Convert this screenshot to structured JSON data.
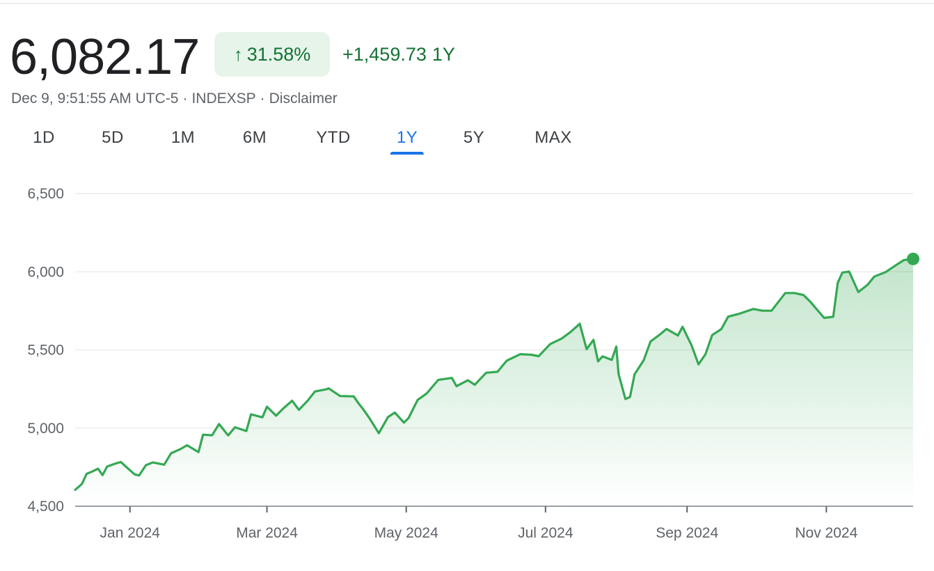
{
  "header": {
    "price": "6,082.17",
    "change_percent": "31.58%",
    "change_arrow_icon": "arrow-up-icon",
    "change_value": "+1,459.73",
    "change_period": "1Y",
    "timestamp": "Dec 9, 9:51:55 AM UTC-5",
    "separator": "·",
    "exchange": "INDEXSP",
    "disclaimer": "Disclaimer"
  },
  "tabs": [
    {
      "label": "1D",
      "active": false
    },
    {
      "label": "5D",
      "active": false
    },
    {
      "label": "1M",
      "active": false
    },
    {
      "label": "6M",
      "active": false
    },
    {
      "label": "YTD",
      "active": false
    },
    {
      "label": "1Y",
      "active": true
    },
    {
      "label": "5Y",
      "active": false
    },
    {
      "label": "MAX",
      "active": false
    }
  ],
  "colors": {
    "line": "#34a853",
    "positive_text": "#137333",
    "badge_bg": "#e6f4ea",
    "active_tab": "#1a73e8"
  },
  "chart_data": {
    "type": "area",
    "title": "",
    "xlabel": "",
    "ylabel": "",
    "ylim": [
      4500,
      6500
    ],
    "yticks": [
      4500,
      5000,
      5500,
      6000,
      6500
    ],
    "ytick_labels": [
      "4,500",
      "5,000",
      "5,500",
      "6,000",
      "6,500"
    ],
    "xlim": [
      "2023-12-08",
      "2024-12-09"
    ],
    "xticks": [
      "2024-01-01",
      "2024-03-01",
      "2024-05-01",
      "2024-07-01",
      "2024-09-01",
      "2024-11-01"
    ],
    "xtick_labels": [
      "Jan 2024",
      "Mar 2024",
      "May 2024",
      "Jul 2024",
      "Sep 2024",
      "Nov 2024"
    ],
    "grid": true,
    "last_point_marker": true,
    "series": [
      {
        "x": [
          "2023-12-08",
          "2023-12-11",
          "2023-12-13",
          "2023-12-15",
          "2023-12-18",
          "2023-12-20",
          "2023-12-22",
          "2023-12-26",
          "2023-12-28",
          "2024-01-03",
          "2024-01-05",
          "2024-01-08",
          "2024-01-11",
          "2024-01-16",
          "2024-01-19",
          "2024-01-23",
          "2024-01-26",
          "2024-01-31",
          "2024-02-02",
          "2024-02-06",
          "2024-02-09",
          "2024-02-13",
          "2024-02-16",
          "2024-02-21",
          "2024-02-23",
          "2024-02-28",
          "2024-03-01",
          "2024-03-05",
          "2024-03-08",
          "2024-03-12",
          "2024-03-15",
          "2024-03-19",
          "2024-03-22",
          "2024-03-27",
          "2024-03-28",
          "2024-04-02",
          "2024-04-05",
          "2024-04-08",
          "2024-04-10",
          "2024-04-12",
          "2024-04-15",
          "2024-04-19",
          "2024-04-23",
          "2024-04-26",
          "2024-04-30",
          "2024-05-02",
          "2024-05-06",
          "2024-05-10",
          "2024-05-15",
          "2024-05-21",
          "2024-05-23",
          "2024-05-28",
          "2024-05-31",
          "2024-06-05",
          "2024-06-10",
          "2024-06-14",
          "2024-06-20",
          "2024-06-25",
          "2024-06-28",
          "2024-07-03",
          "2024-07-08",
          "2024-07-12",
          "2024-07-16",
          "2024-07-19",
          "2024-07-22",
          "2024-07-24",
          "2024-07-26",
          "2024-07-30",
          "2024-08-01",
          "2024-08-02",
          "2024-08-05",
          "2024-08-07",
          "2024-08-09",
          "2024-08-13",
          "2024-08-16",
          "2024-08-20",
          "2024-08-23",
          "2024-08-28",
          "2024-08-30",
          "2024-09-03",
          "2024-09-06",
          "2024-09-09",
          "2024-09-12",
          "2024-09-16",
          "2024-09-19",
          "2024-09-24",
          "2024-09-30",
          "2024-10-04",
          "2024-10-08",
          "2024-10-14",
          "2024-10-18",
          "2024-10-22",
          "2024-10-25",
          "2024-10-31",
          "2024-11-04",
          "2024-11-06",
          "2024-11-08",
          "2024-11-11",
          "2024-11-15",
          "2024-11-19",
          "2024-11-22",
          "2024-11-27",
          "2024-12-02",
          "2024-12-05",
          "2024-12-09"
        ],
        "y": [
          4605,
          4643,
          4707,
          4719,
          4740,
          4699,
          4754,
          4775,
          4783,
          4704,
          4697,
          4763,
          4780,
          4766,
          4839,
          4865,
          4890,
          4846,
          4958,
          4954,
          5026,
          4953,
          5005,
          4981,
          5088,
          5069,
          5137,
          5079,
          5123,
          5175,
          5117,
          5178,
          5234,
          5248,
          5254,
          5205,
          5204,
          5203,
          5160,
          5123,
          5061,
          4967,
          5070,
          5099,
          5035,
          5064,
          5180,
          5222,
          5308,
          5321,
          5268,
          5306,
          5277,
          5354,
          5360,
          5431,
          5473,
          5469,
          5460,
          5537,
          5572,
          5615,
          5667,
          5505,
          5564,
          5427,
          5459,
          5436,
          5522,
          5346,
          5186,
          5199,
          5344,
          5434,
          5554,
          5597,
          5634,
          5592,
          5648,
          5528,
          5408,
          5471,
          5595,
          5633,
          5713,
          5732,
          5762,
          5751,
          5751,
          5864,
          5864,
          5851,
          5808,
          5705,
          5712,
          5929,
          5995,
          6001,
          5870,
          5916,
          5969,
          5998,
          6047,
          6075,
          6082
        ]
      }
    ]
  }
}
